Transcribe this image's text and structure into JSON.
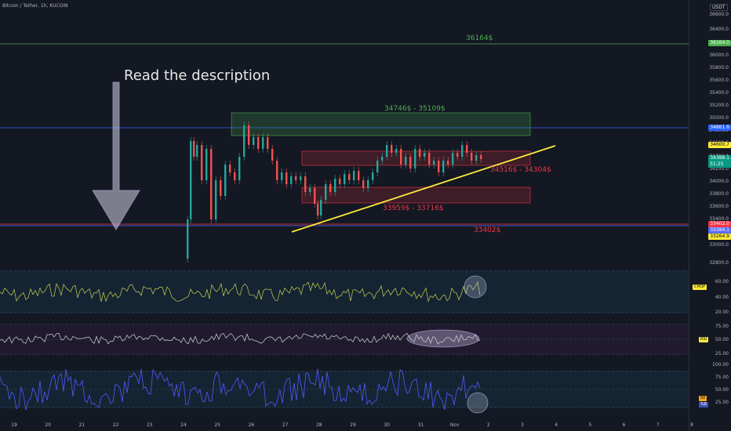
{
  "header": {
    "symbol": "Bitcoin / Tether, 1h, KUCOIN",
    "currency": "USDT"
  },
  "annotations": {
    "description": "Read the description",
    "level_36164": "36164$",
    "zone_upper": "34746$ - 35109$",
    "zone_mid": "34516$ - 34304$",
    "zone_lower": "33959$ - 33716$",
    "level_33402": "33402$"
  },
  "price_axis": {
    "labels": [
      "36600.0",
      "36400.0",
      "36200.0",
      "36000.0",
      "35800.0",
      "35600.0",
      "35400.0",
      "35200.0",
      "35000.0",
      "34800.0",
      "34600.0",
      "34400.0",
      "34200.0",
      "34000.0",
      "33800.0",
      "33600.0",
      "33400.0",
      "33200.0",
      "33000.0",
      "32800.0"
    ]
  },
  "price_tags": [
    {
      "name": "level-36164-tag",
      "text": "36164.0",
      "bg": "#4caf50"
    },
    {
      "name": "level-34861-tag",
      "text": "34861.6",
      "bg": "#2962ff"
    },
    {
      "name": "trendline-price-tag",
      "text": "34600.7",
      "bg": "#ffeb3b",
      "fg": "#000000"
    },
    {
      "name": "last-price-tag",
      "text": "34388.1",
      "sub": "51:25",
      "bg": "#089981"
    },
    {
      "name": "level-33402-tag",
      "text": "33402.0",
      "bg": "#f23645"
    },
    {
      "name": "level-33384-tag",
      "text": "33384.1",
      "bg": "#5b6bff"
    },
    {
      "name": "level-33264-tag",
      "text": "33264.9",
      "bg": "#ffeb3b",
      "fg": "#000000"
    }
  ],
  "chop": {
    "tag": "CHOP",
    "labels": [
      "60.00",
      "40.00",
      "20.00"
    ]
  },
  "rsi": {
    "tag": "RSI",
    "labels": [
      "75.00",
      "50.00",
      "25.00"
    ]
  },
  "stoch": {
    "tags": [
      "50",
      "%K"
    ],
    "labels": [
      "100.00",
      "75.00",
      "50.00",
      "25.00"
    ]
  },
  "time_axis": [
    "19",
    "20",
    "21",
    "22",
    "23",
    "24",
    "25",
    "26",
    "27",
    "28",
    "29",
    "30",
    "31",
    "Nov",
    "2",
    "3",
    "4",
    "5",
    "6",
    "7",
    "8"
  ],
  "colors": {
    "background": "#141823",
    "up": "#26a69a",
    "down": "#ef5350",
    "green_level": "#4caf50",
    "blue_level": "#2962ff",
    "red_level": "#f23645",
    "trendline": "#ffeb3b",
    "chop_line": "#c8d24f",
    "rsi_line": "#d8d8d8",
    "stoch_line": "#4d5bff"
  }
}
